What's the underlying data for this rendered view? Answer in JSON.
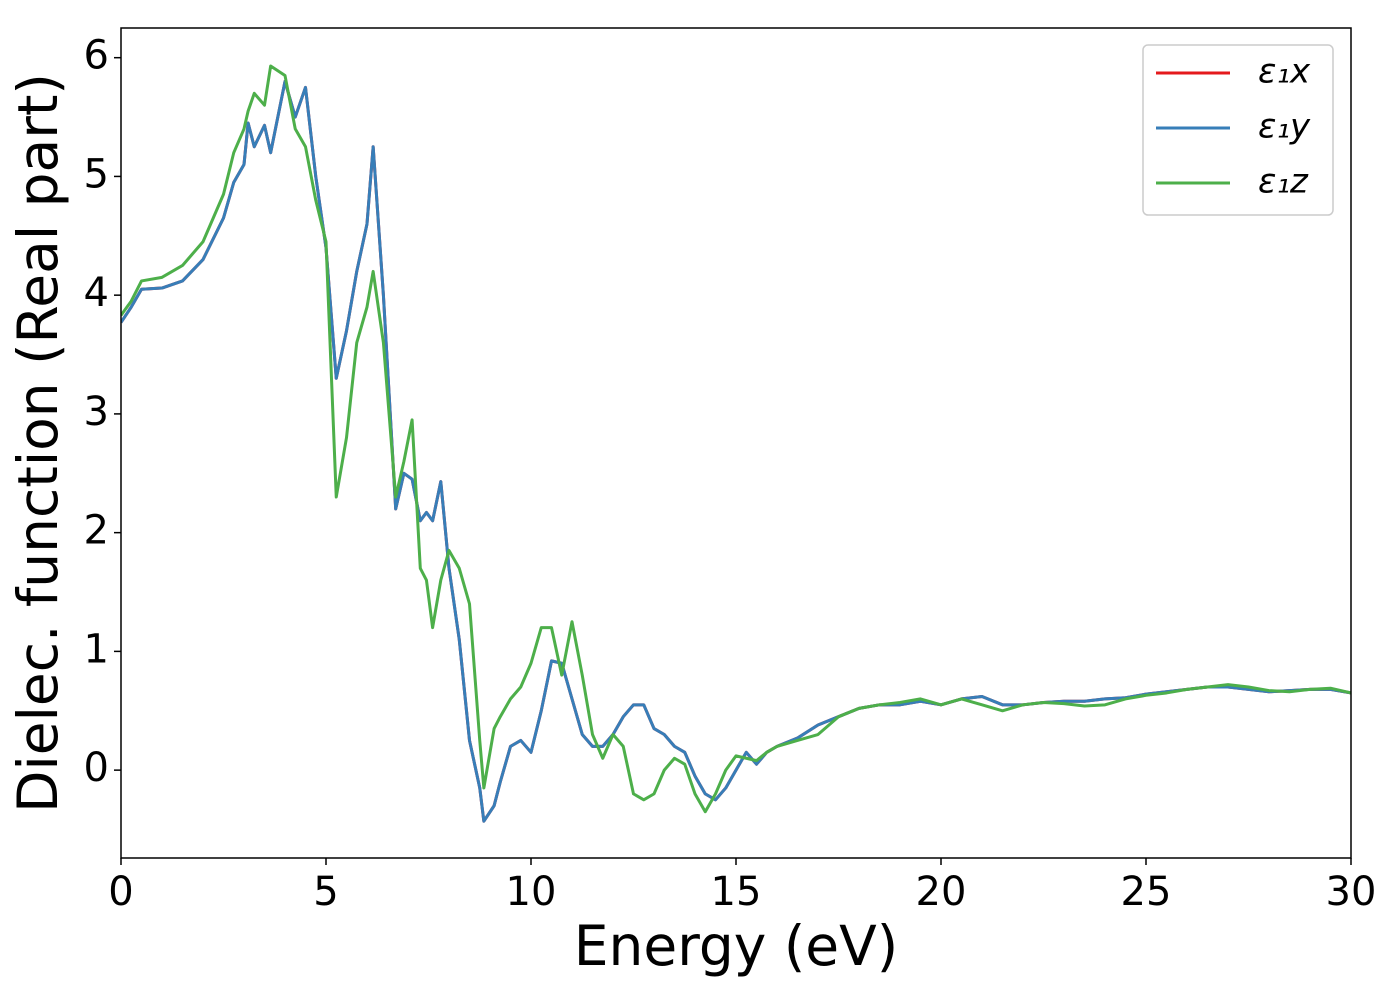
{
  "chart_data": {
    "type": "line",
    "x_label": "Energy (eV)",
    "y_label": "Dielec. function (Real part)",
    "x": [
      0,
      0.25,
      0.5,
      1,
      1.5,
      2,
      2.5,
      2.75,
      3,
      3.1,
      3.25,
      3.5,
      3.65,
      4,
      4.25,
      4.5,
      4.75,
      5,
      5.25,
      5.5,
      5.75,
      6,
      6.15,
      6.4,
      6.7,
      6.9,
      7.1,
      7.3,
      7.45,
      7.6,
      7.8,
      8,
      8.25,
      8.5,
      8.75,
      8.85,
      9.1,
      9.25,
      9.5,
      9.75,
      10,
      10.25,
      10.5,
      10.75,
      11,
      11.25,
      11.5,
      11.75,
      12,
      12.25,
      12.5,
      12.75,
      13,
      13.25,
      13.5,
      13.75,
      14,
      14.25,
      14.5,
      14.75,
      15,
      15.25,
      15.5,
      15.75,
      16,
      16.5,
      17,
      17.5,
      18,
      18.5,
      19,
      19.5,
      20,
      20.5,
      21,
      21.5,
      22,
      22.5,
      23,
      23.5,
      24,
      24.5,
      25,
      25.5,
      26,
      26.5,
      27,
      27.5,
      28,
      28.5,
      29,
      29.5,
      30
    ],
    "series": [
      {
        "name": "ε₁x",
        "color": "#e41a1c",
        "values": [
          3.77,
          3.9,
          4.05,
          4.06,
          4.12,
          4.3,
          4.65,
          4.95,
          5.1,
          5.45,
          5.25,
          5.43,
          5.2,
          5.8,
          5.5,
          5.75,
          5.0,
          4.4,
          3.3,
          3.7,
          4.2,
          4.6,
          5.25,
          4.0,
          2.2,
          2.5,
          2.45,
          2.1,
          2.17,
          2.1,
          2.43,
          1.7,
          1.1,
          0.25,
          -0.15,
          -0.43,
          -0.3,
          -0.1,
          0.2,
          0.25,
          0.15,
          0.5,
          0.92,
          0.9,
          0.6,
          0.3,
          0.2,
          0.2,
          0.3,
          0.45,
          0.55,
          0.55,
          0.35,
          0.3,
          0.2,
          0.15,
          -0.05,
          -0.2,
          -0.25,
          -0.15,
          0.0,
          0.15,
          0.05,
          0.15,
          0.2,
          0.27,
          0.38,
          0.45,
          0.52,
          0.55,
          0.55,
          0.58,
          0.55,
          0.6,
          0.62,
          0.55,
          0.55,
          0.57,
          0.58,
          0.58,
          0.6,
          0.61,
          0.64,
          0.66,
          0.68,
          0.7,
          0.7,
          0.68,
          0.66,
          0.67,
          0.68,
          0.68,
          0.65
        ]
      },
      {
        "name": "ε₁y",
        "color": "#377eb8",
        "values": [
          3.77,
          3.9,
          4.05,
          4.06,
          4.12,
          4.3,
          4.65,
          4.95,
          5.1,
          5.45,
          5.25,
          5.43,
          5.2,
          5.8,
          5.5,
          5.75,
          5.0,
          4.4,
          3.3,
          3.7,
          4.2,
          4.6,
          5.25,
          4.0,
          2.2,
          2.5,
          2.45,
          2.1,
          2.17,
          2.1,
          2.43,
          1.7,
          1.1,
          0.25,
          -0.15,
          -0.43,
          -0.3,
          -0.1,
          0.2,
          0.25,
          0.15,
          0.5,
          0.92,
          0.9,
          0.6,
          0.3,
          0.2,
          0.2,
          0.3,
          0.45,
          0.55,
          0.55,
          0.35,
          0.3,
          0.2,
          0.15,
          -0.05,
          -0.2,
          -0.25,
          -0.15,
          0.0,
          0.15,
          0.05,
          0.15,
          0.2,
          0.27,
          0.38,
          0.45,
          0.52,
          0.55,
          0.55,
          0.58,
          0.55,
          0.6,
          0.62,
          0.55,
          0.55,
          0.57,
          0.58,
          0.58,
          0.6,
          0.61,
          0.64,
          0.66,
          0.68,
          0.7,
          0.7,
          0.68,
          0.66,
          0.67,
          0.68,
          0.68,
          0.65
        ]
      },
      {
        "name": "ε₁z",
        "color": "#4daf4a",
        "values": [
          3.83,
          3.95,
          4.12,
          4.15,
          4.25,
          4.45,
          4.85,
          5.2,
          5.4,
          5.55,
          5.7,
          5.6,
          5.93,
          5.85,
          5.4,
          5.25,
          4.8,
          4.45,
          2.3,
          2.8,
          3.6,
          3.9,
          4.2,
          3.6,
          2.3,
          2.6,
          2.95,
          1.7,
          1.6,
          1.2,
          1.6,
          1.85,
          1.7,
          1.4,
          0.25,
          -0.15,
          0.35,
          0.45,
          0.6,
          0.7,
          0.9,
          1.2,
          1.2,
          0.8,
          1.25,
          0.8,
          0.3,
          0.1,
          0.3,
          0.2,
          -0.2,
          -0.25,
          -0.2,
          0.0,
          0.1,
          0.05,
          -0.2,
          -0.35,
          -0.2,
          0.0,
          0.12,
          0.1,
          0.08,
          0.15,
          0.2,
          0.25,
          0.3,
          0.45,
          0.52,
          0.55,
          0.57,
          0.6,
          0.55,
          0.6,
          0.55,
          0.5,
          0.55,
          0.57,
          0.56,
          0.54,
          0.55,
          0.6,
          0.63,
          0.65,
          0.68,
          0.7,
          0.72,
          0.7,
          0.67,
          0.66,
          0.68,
          0.69,
          0.65
        ]
      }
    ],
    "xlim": [
      0,
      30
    ],
    "ylim": [
      -0.74,
      6.25
    ],
    "xticks": [
      0,
      5,
      10,
      15,
      20,
      25,
      30
    ],
    "yticks": [
      0,
      1,
      2,
      3,
      4,
      5,
      6
    ],
    "grid": false,
    "legend": "upper right"
  }
}
